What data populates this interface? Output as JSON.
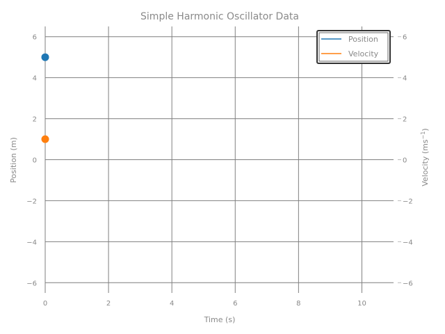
{
  "chart_data": {
    "type": "scatter",
    "title": "Simple Harmonic Oscillator Data",
    "xlabel": "Time (s)",
    "ylabel_left": "Position (m)",
    "ylabel_right": "Velocity (ms",
    "ylabel_right_sup": "−1",
    "ylabel_right_close": ")",
    "xlim": [
      0,
      11
    ],
    "ylim": [
      -6.5,
      6.5
    ],
    "xticks": [
      0,
      2,
      4,
      6,
      8,
      10
    ],
    "xtick_labels": [
      "0",
      "2",
      "4",
      "6",
      "8",
      "10"
    ],
    "yticks": [
      6,
      4,
      2,
      0,
      -2,
      -4,
      -6
    ],
    "ytick_labels": [
      "6",
      "4",
      "2",
      "0",
      "−2",
      "−4",
      "−6"
    ],
    "grid": true,
    "legend_position": "top-right",
    "series": [
      {
        "name": "Position",
        "color": "#1f77b4",
        "axis": "left",
        "points": [
          [
            0,
            5
          ]
        ]
      },
      {
        "name": "Velocity",
        "color": "#ff7f0e",
        "axis": "right",
        "points": [
          [
            0,
            1
          ]
        ]
      }
    ]
  }
}
